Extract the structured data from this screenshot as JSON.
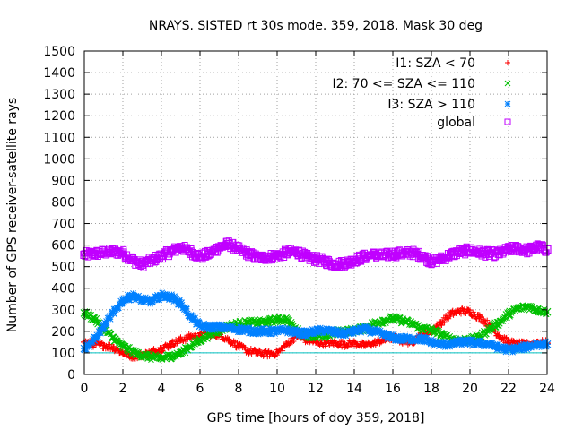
{
  "chart_data": {
    "type": "scatter",
    "title": "NRAYS. SISTED rt 30s mode. 359, 2018. Mask 30 deg",
    "xlabel": "GPS time [hours of doy 359, 2018]",
    "ylabel": "Number of GPS receiver-satellite rays",
    "xlim": [
      0,
      24
    ],
    "ylim": [
      0,
      1500
    ],
    "xticks": [
      0,
      2,
      4,
      6,
      8,
      10,
      12,
      14,
      16,
      18,
      20,
      22,
      24
    ],
    "yticks": [
      0,
      100,
      200,
      300,
      400,
      500,
      600,
      700,
      800,
      900,
      1000,
      1100,
      1200,
      1300,
      1400,
      1500
    ],
    "grid": true,
    "legend_position": "top-right",
    "reference_line": {
      "y": 100,
      "color": "#00c0c0"
    },
    "series": [
      {
        "name": "I1: SZA < 70",
        "marker": "+",
        "color": "#ff0000",
        "x": [
          0,
          0.5,
          1,
          1.5,
          2,
          2.5,
          3,
          3.5,
          4,
          4.5,
          5,
          5.5,
          6,
          6.5,
          7,
          7.5,
          8,
          8.5,
          9,
          9.5,
          10,
          10.5,
          11,
          11.5,
          12,
          12.5,
          13,
          13.5,
          14,
          14.5,
          15,
          15.5,
          16,
          16.5,
          17,
          17.5,
          18,
          18.5,
          19,
          19.5,
          20,
          20.5,
          21,
          21.5,
          22,
          22.5,
          23,
          23.5,
          24
        ],
        "values": [
          150,
          140,
          135,
          125,
          100,
          85,
          90,
          105,
          120,
          140,
          160,
          175,
          180,
          185,
          185,
          160,
          130,
          110,
          100,
          95,
          100,
          140,
          180,
          160,
          150,
          145,
          145,
          140,
          145,
          135,
          145,
          160,
          170,
          155,
          150,
          185,
          205,
          240,
          280,
          295,
          290,
          265,
          230,
          180,
          150,
          140,
          140,
          150,
          145
        ]
      },
      {
        "name": "I2: 70 <= SZA <= 110",
        "marker": "x",
        "color": "#00c000",
        "x": [
          0,
          0.5,
          1,
          1.5,
          2,
          2.5,
          3,
          3.5,
          4,
          4.5,
          5,
          5.5,
          6,
          6.5,
          7,
          7.5,
          8,
          8.5,
          9,
          9.5,
          10,
          10.5,
          11,
          11.5,
          12,
          12.5,
          13,
          13.5,
          14,
          14.5,
          15,
          15.5,
          16,
          16.5,
          17,
          17.5,
          18,
          18.5,
          19,
          19.5,
          20,
          20.5,
          21,
          21.5,
          22,
          22.5,
          23,
          23.5,
          24
        ],
        "values": [
          285,
          260,
          210,
          170,
          130,
          105,
          90,
          80,
          75,
          85,
          100,
          130,
          160,
          185,
          205,
          225,
          235,
          240,
          240,
          245,
          255,
          255,
          205,
          185,
          175,
          180,
          195,
          200,
          205,
          215,
          235,
          250,
          260,
          250,
          235,
          215,
          205,
          185,
          165,
          160,
          160,
          175,
          210,
          240,
          280,
          305,
          315,
          300,
          290
        ]
      },
      {
        "name": "I3: SZA > 110",
        "marker": "*",
        "color": "#0080ff",
        "x": [
          0,
          0.5,
          1,
          1.5,
          2,
          2.5,
          3,
          3.5,
          4,
          4.5,
          5,
          5.5,
          6,
          6.5,
          7,
          7.5,
          8,
          8.5,
          9,
          9.5,
          10,
          10.5,
          11,
          11.5,
          12,
          12.5,
          13,
          13.5,
          14,
          14.5,
          15,
          15.5,
          16,
          16.5,
          17,
          17.5,
          18,
          18.5,
          19,
          19.5,
          20,
          20.5,
          21,
          21.5,
          22,
          22.5,
          23,
          23.5,
          24
        ],
        "values": [
          120,
          160,
          220,
          285,
          345,
          365,
          345,
          340,
          365,
          360,
          330,
          270,
          225,
          220,
          220,
          215,
          210,
          205,
          200,
          200,
          200,
          205,
          195,
          190,
          200,
          205,
          195,
          190,
          200,
          210,
          200,
          185,
          170,
          165,
          165,
          165,
          150,
          140,
          140,
          150,
          150,
          145,
          140,
          125,
          115,
          120,
          130,
          140,
          140
        ]
      },
      {
        "name": "global",
        "marker": "square",
        "color": "#c000ff",
        "x": [
          0,
          0.5,
          1,
          1.5,
          2,
          2.5,
          3,
          3.5,
          4,
          4.5,
          5,
          5.5,
          6,
          6.5,
          7,
          7.5,
          8,
          8.5,
          9,
          9.5,
          10,
          10.5,
          11,
          11.5,
          12,
          12.5,
          13,
          13.5,
          14,
          14.5,
          15,
          15.5,
          16,
          16.5,
          17,
          17.5,
          18,
          18.5,
          19,
          19.5,
          20,
          20.5,
          21,
          21.5,
          22,
          22.5,
          23,
          23.5,
          24
        ],
        "values": [
          555,
          560,
          565,
          570,
          565,
          530,
          510,
          530,
          550,
          570,
          590,
          570,
          545,
          560,
          590,
          605,
          580,
          560,
          540,
          545,
          550,
          565,
          570,
          545,
          535,
          525,
          510,
          515,
          530,
          545,
          555,
          550,
          560,
          560,
          565,
          550,
          525,
          535,
          555,
          570,
          575,
          565,
          560,
          560,
          580,
          585,
          575,
          590,
          580
        ]
      }
    ]
  }
}
